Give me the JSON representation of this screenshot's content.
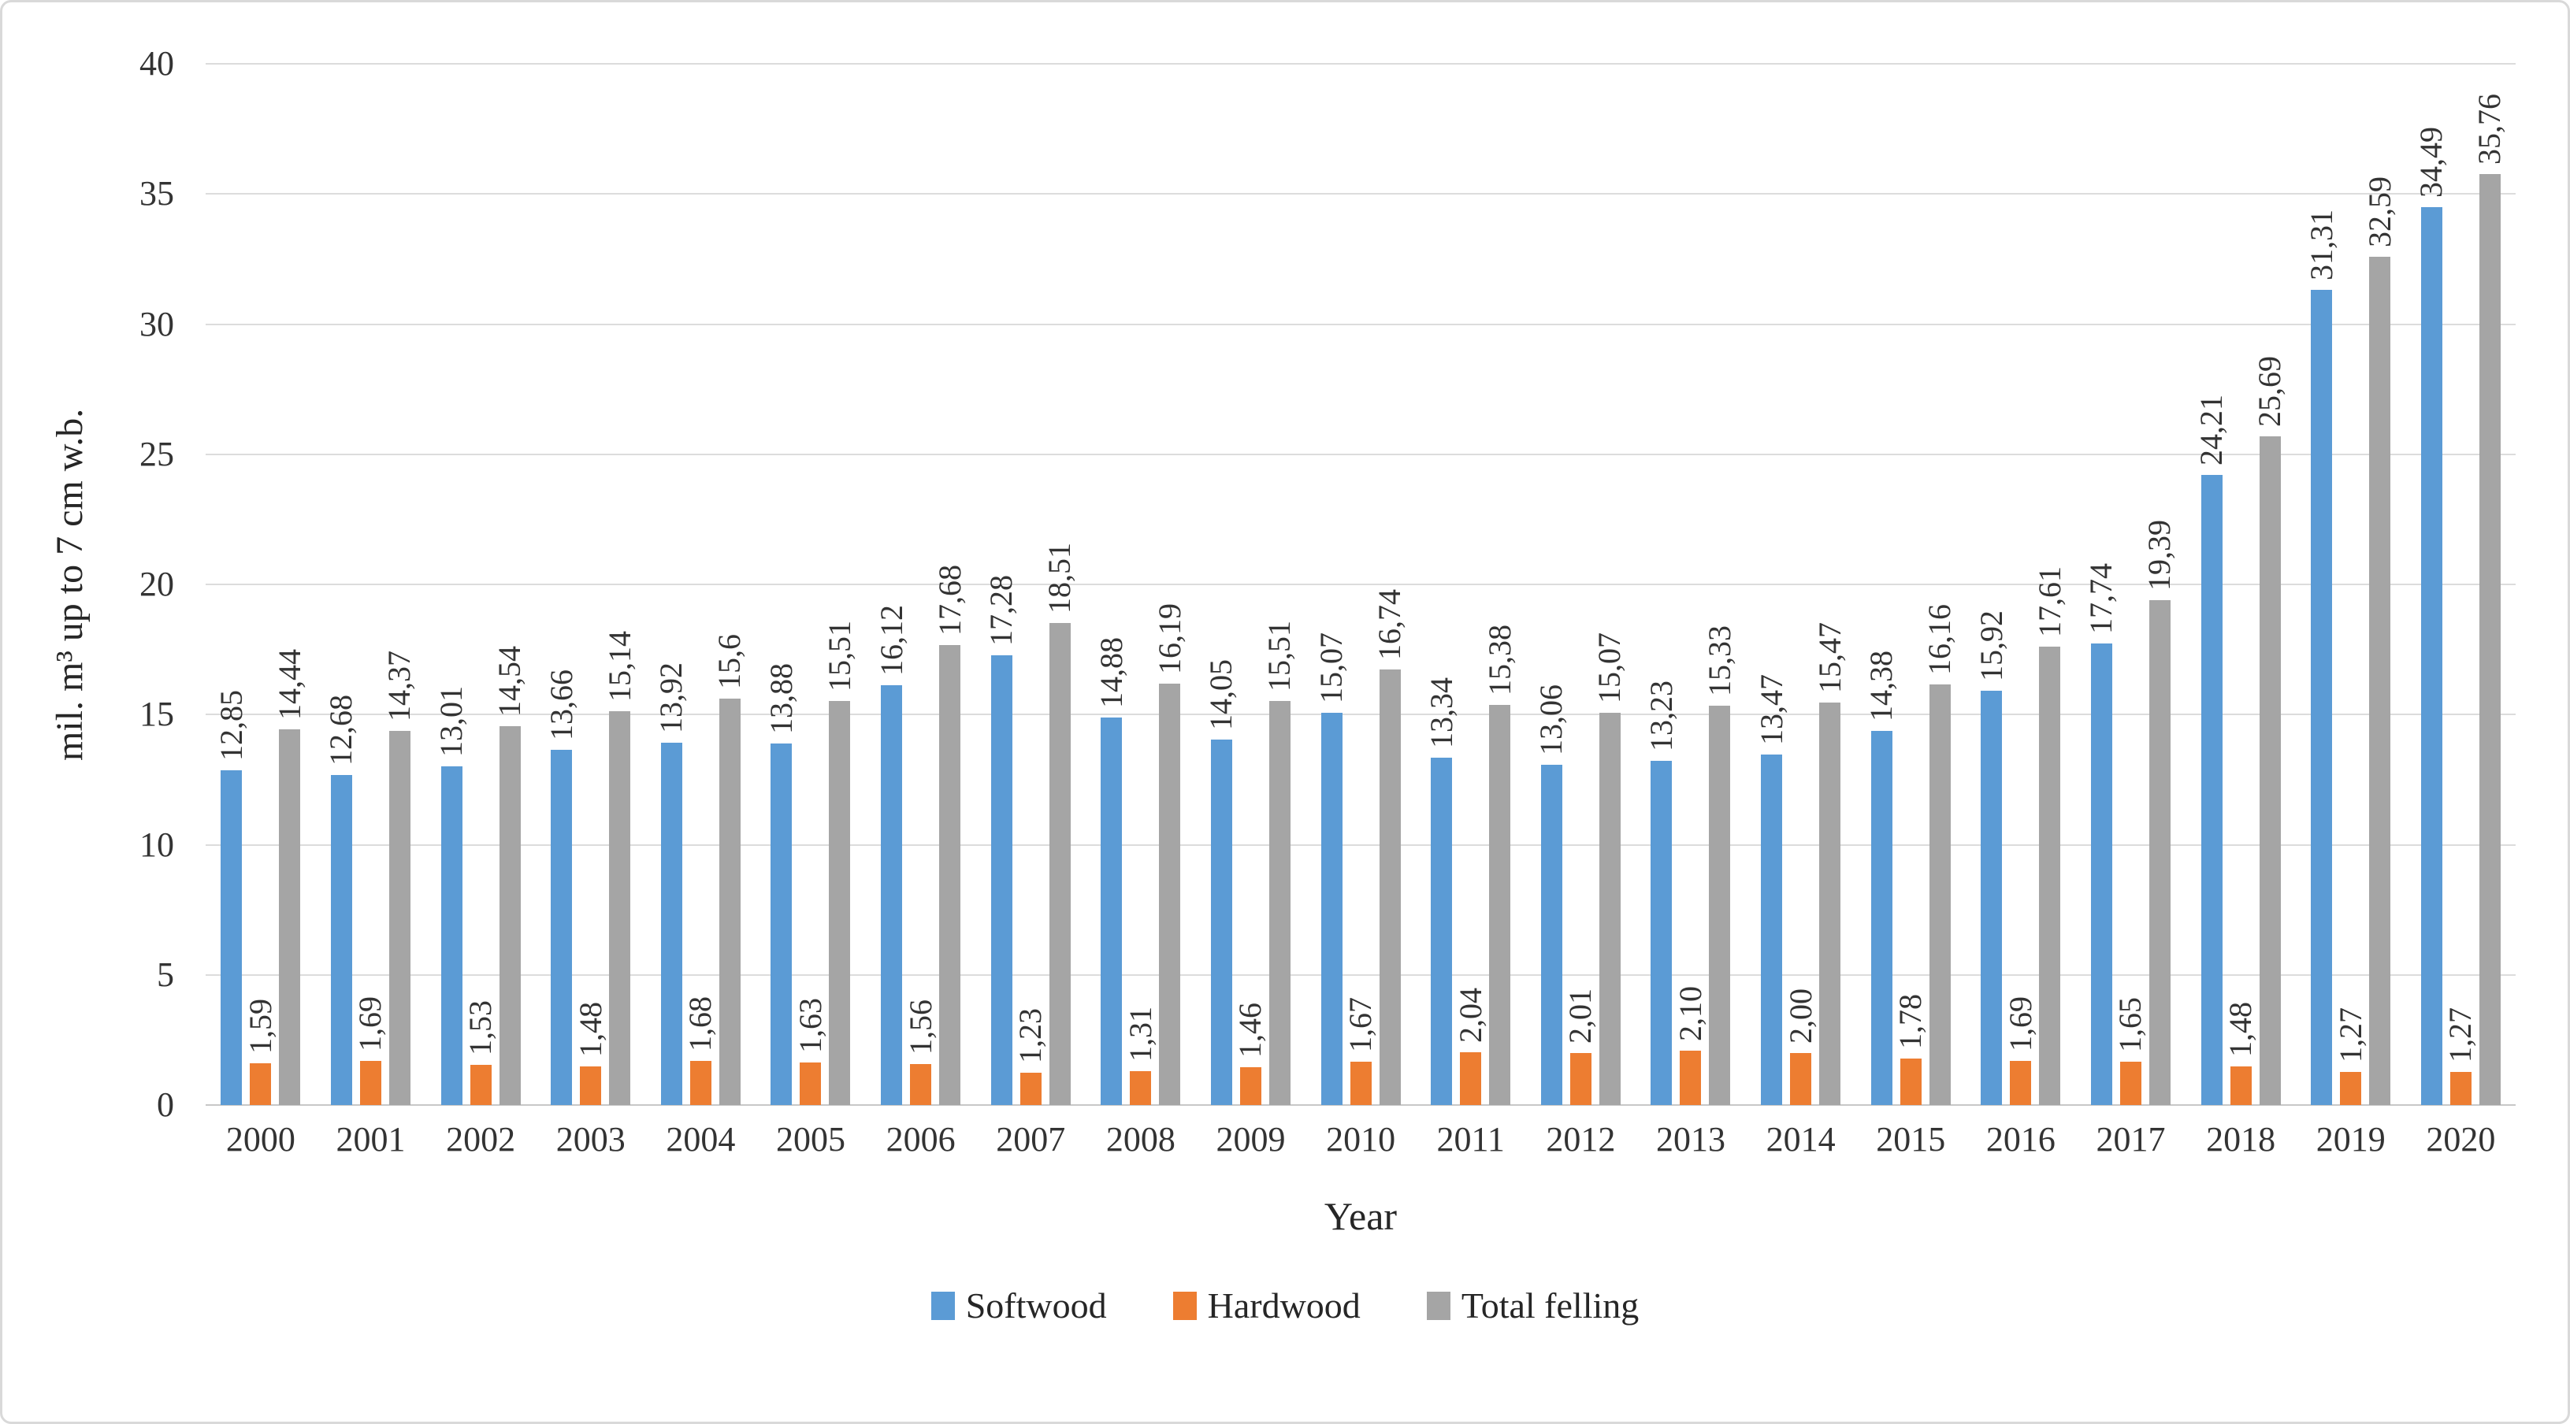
{
  "chart_data": {
    "type": "bar",
    "title": "",
    "categories": [
      "2000",
      "2001",
      "2002",
      "2003",
      "2004",
      "2005",
      "2006",
      "2007",
      "2008",
      "2009",
      "2010",
      "2011",
      "2012",
      "2013",
      "2014",
      "2015",
      "2016",
      "2017",
      "2018",
      "2019",
      "2020"
    ],
    "series": [
      {
        "name": "Softwood",
        "color": "#5B9BD5",
        "values": [
          12.85,
          12.68,
          13.01,
          13.66,
          13.92,
          13.88,
          16.12,
          17.28,
          14.88,
          14.05,
          15.07,
          13.34,
          13.06,
          13.23,
          13.47,
          14.38,
          15.92,
          17.74,
          24.21,
          31.31,
          34.49
        ],
        "labels": [
          "12,85",
          "12,68",
          "13,01",
          "13,66",
          "13,92",
          "13,88",
          "16,12",
          "17,28",
          "14,88",
          "14,05",
          "15,07",
          "13,34",
          "13,06",
          "13,23",
          "13,47",
          "14,38",
          "15,92",
          "17,74",
          "24,21",
          "31,31",
          "34,49"
        ]
      },
      {
        "name": "Hardwood",
        "color": "#ED7D31",
        "values": [
          1.59,
          1.69,
          1.53,
          1.48,
          1.68,
          1.63,
          1.56,
          1.23,
          1.31,
          1.46,
          1.67,
          2.04,
          2.01,
          2.1,
          2.0,
          1.78,
          1.69,
          1.65,
          1.48,
          1.27,
          1.27
        ],
        "labels": [
          "1,59",
          "1,69",
          "1,53",
          "1,48",
          "1,68",
          "1,63",
          "1,56",
          "1,23",
          "1,31",
          "1,46",
          "1,67",
          "2,04",
          "2,01",
          "2,10",
          "2,00",
          "1,78",
          "1,69",
          "1,65",
          "1,48",
          "1,27",
          "1,27"
        ]
      },
      {
        "name": "Total felling",
        "color": "#A5A5A5",
        "values": [
          14.44,
          14.37,
          14.54,
          15.14,
          15.6,
          15.51,
          17.68,
          18.51,
          16.19,
          15.51,
          16.74,
          15.38,
          15.07,
          15.33,
          15.47,
          16.16,
          17.61,
          19.39,
          25.69,
          32.59,
          35.76
        ],
        "labels": [
          "14,44",
          "14,37",
          "14,54",
          "15,14",
          "15,6",
          "15,51",
          "17,68",
          "18,51",
          "16,19",
          "15,51",
          "16,74",
          "15,38",
          "15,07",
          "15,33",
          "15,47",
          "16,16",
          "17,61",
          "19,39",
          "25,69",
          "32,59",
          "35,76"
        ]
      }
    ],
    "xlabel": "Year",
    "ylabel": "mil. m³ up to 7 cm w.b.",
    "ylim": [
      0,
      40
    ],
    "yticks": [
      "0",
      "5",
      "10",
      "15",
      "20",
      "25",
      "30",
      "35",
      "40"
    ],
    "grid": true,
    "legend_position": "bottom"
  }
}
